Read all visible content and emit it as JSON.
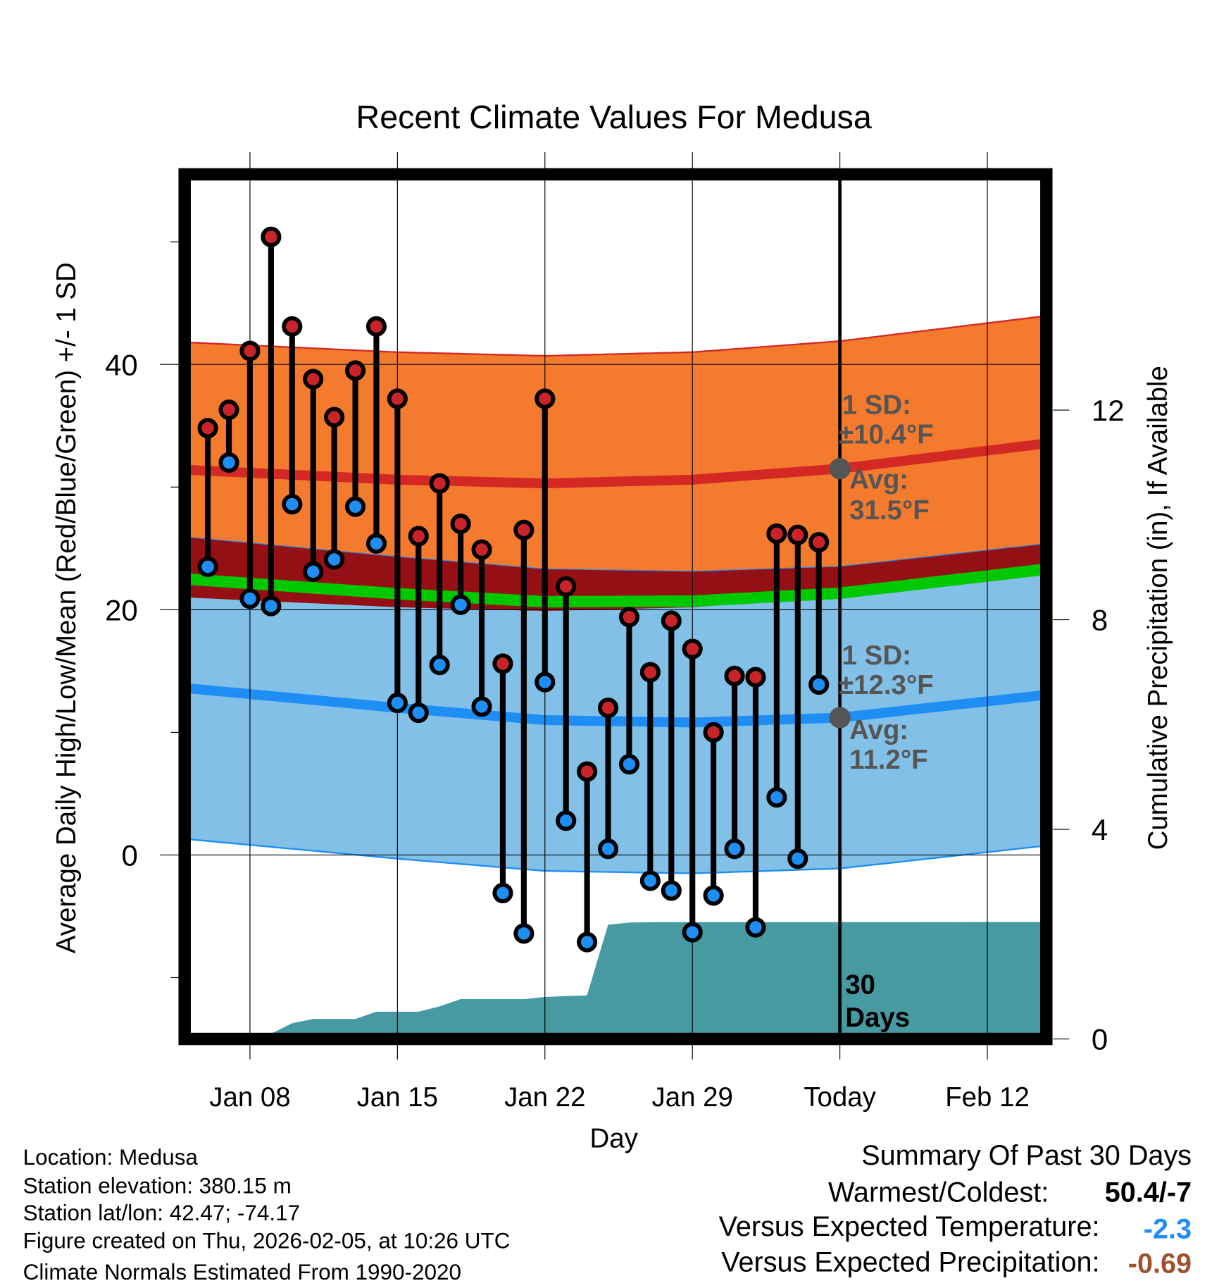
{
  "chart_data": {
    "type": "line",
    "title": "Recent Climate Values For Medusa",
    "xlabel": "Day",
    "ylabel": "Average Daily High/Low/Mean (Red/Blue/Green) +/- 1 SD",
    "ylabel_right": "Cumulative Precipitation (in), If Available",
    "ylim": [
      -15,
      55.5
    ],
    "ylim_right": [
      0,
      16.5
    ],
    "x_ticks": [
      {
        "day": 0,
        "label": "Jan 08"
      },
      {
        "day": 7,
        "label": "Jan 15"
      },
      {
        "day": 14,
        "label": "Jan 22"
      },
      {
        "day": 21,
        "label": "Jan 29"
      },
      {
        "day": 28,
        "label": "Today"
      },
      {
        "day": 35,
        "label": "Feb 12"
      }
    ],
    "x_range_days": [
      -3.1,
      37.8
    ],
    "y_ticks": [
      0,
      20,
      40
    ],
    "y_ticks_right": [
      0,
      4,
      8,
      12
    ],
    "today_day": 28,
    "dates": [
      "Jan 06",
      "Jan 07",
      "Jan 08",
      "Jan 09",
      "Jan 10",
      "Jan 11",
      "Jan 12",
      "Jan 13",
      "Jan 14",
      "Jan 15",
      "Jan 16",
      "Jan 17",
      "Jan 18",
      "Jan 19",
      "Jan 20",
      "Jan 21",
      "Jan 22",
      "Jan 23",
      "Jan 24",
      "Jan 25",
      "Jan 26",
      "Jan 27",
      "Jan 28",
      "Jan 29",
      "Jan 30",
      "Jan 31",
      "Feb 01",
      "Feb 02",
      "Feb 03",
      "Feb 04"
    ],
    "first_day": -2,
    "highs": [
      34.8,
      36.3,
      41.1,
      50.4,
      43.1,
      38.8,
      35.7,
      39.5,
      43.1,
      37.2,
      26.0,
      30.3,
      27.0,
      24.9,
      15.6,
      26.5,
      37.2,
      21.9,
      6.8,
      12.0,
      19.4,
      14.9,
      19.1,
      16.8,
      10.0,
      14.6,
      14.5,
      26.2,
      26.1,
      25.5
    ],
    "lows": [
      23.5,
      32.0,
      20.9,
      20.3,
      28.6,
      23.1,
      24.1,
      28.4,
      25.4,
      12.4,
      11.6,
      15.5,
      20.4,
      12.1,
      -3.1,
      -6.4,
      14.1,
      2.8,
      -7.1,
      0.5,
      7.4,
      -2.1,
      -2.9,
      -6.3,
      -3.3,
      0.5,
      -5.9,
      4.7,
      -0.3,
      13.9
    ],
    "precip_cumulative": [
      0,
      0,
      0,
      0.1,
      0.3,
      0.38,
      0.38,
      0.38,
      0.52,
      0.52,
      0.52,
      0.62,
      0.76,
      0.76,
      0.76,
      0.76,
      0.8,
      0.82,
      0.83,
      2.18,
      2.22,
      2.23,
      2.23,
      2.23,
      2.23,
      2.23,
      2.23,
      2.23,
      2.23,
      2.23
    ],
    "normals": {
      "days": [
        -3,
        7,
        14,
        21,
        28,
        38
      ],
      "high_avg": [
        31.4,
        30.6,
        30.3,
        30.6,
        31.5,
        33.6
      ],
      "low_avg": [
        13.6,
        12.0,
        11.0,
        10.8,
        11.2,
        13.1
      ],
      "high_sd": 10.4,
      "low_sd": 12.3
    },
    "annotations": {
      "high_sd_label": "1 SD:",
      "high_sd_value": "±10.4°F",
      "high_avg_label": "Avg:",
      "high_avg_value": "31.5°F",
      "low_sd_label": "1 SD:",
      "low_sd_value": "±12.3°F",
      "low_avg_label": "Avg:",
      "low_avg_value": "11.2°F",
      "days_num": "30",
      "days_word": "Days"
    },
    "colors": {
      "high_band": "#f47b2e",
      "low_band": "#82c0e8",
      "overlap": "#951015",
      "high_line": "#d42825",
      "low_line": "#1e8ef5",
      "mean_line": "#00c800",
      "precip": "#4799a2",
      "high_dot": "#c8242a",
      "low_dot": "#1e8ef5"
    }
  },
  "footer": {
    "location": "Location: Medusa",
    "elevation": "Station elevation: 380.15 m",
    "latlon": "Station lat/lon: 42.47; -74.17",
    "created": "Figure created on Thu, 2026-02-05, at 10:26 UTC",
    "normals": "Climate Normals Estimated From 1990-2020"
  },
  "summary": {
    "title": "Summary Of Past 30 Days",
    "warmest_label": "Warmest/Coldest:",
    "warmest_value": "50.4/-7",
    "temp_label": "Versus Expected Temperature:",
    "temp_value": "-2.3",
    "temp_color": "#1e8ef5",
    "precip_label": "Versus Expected Precipitation:",
    "precip_value": "-0.69",
    "precip_color": "#a0522d"
  }
}
